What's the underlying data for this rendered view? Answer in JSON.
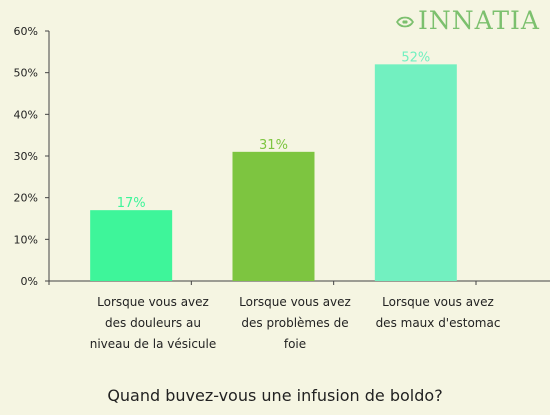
{
  "brand": {
    "logo_text": "INNATIA",
    "logo_color": "#7cc06e"
  },
  "chart_data": {
    "type": "bar",
    "title": "Quand buvez-vous une infusion de boldo?",
    "categories": [
      "Lorsque vous avez des douleurs au niveau de la vésicule",
      "Lorsque vous avez des problèmes de foie",
      "Lorsque vous avez des maux d'estomac"
    ],
    "values": [
      17,
      31,
      52
    ],
    "value_labels": [
      "17%",
      "31%",
      "52%"
    ],
    "bar_colors": [
      "#3ef59a",
      "#7dc540",
      "#72f0c0"
    ],
    "yticks": [
      "0%",
      "10%",
      "20%",
      "30%",
      "40%",
      "50%",
      "60%"
    ],
    "ylim": [
      0,
      60
    ],
    "grid": false,
    "legend": "none"
  }
}
